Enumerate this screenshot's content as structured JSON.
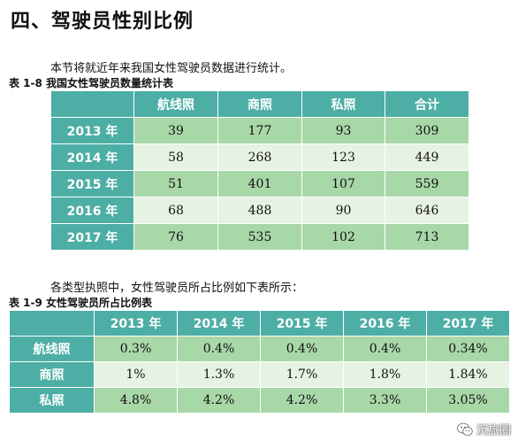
{
  "heading": "四、驾驶员性别比例",
  "intro1": "本节将就近年来我国女性驾驶员数据进行统计。",
  "table1": {
    "caption": "表 1-8  我国女性驾驶员数量统计表",
    "headers": [
      "",
      "航线照",
      "商照",
      "私照",
      "合计"
    ],
    "rows": [
      [
        "2013 年",
        "39",
        "177",
        "93",
        "309"
      ],
      [
        "2014 年",
        "58",
        "268",
        "123",
        "449"
      ],
      [
        "2015 年",
        "51",
        "401",
        "107",
        "559"
      ],
      [
        "2016 年",
        "68",
        "488",
        "90",
        "646"
      ],
      [
        "2017 年",
        "76",
        "535",
        "102",
        "713"
      ]
    ]
  },
  "intro2": "各类型执照中，女性驾驶员所占比例如下表所示：",
  "table2": {
    "caption": "表 1-9  女性驾驶员所占比例表",
    "headers": [
      "",
      "2013 年",
      "2014 年",
      "2015 年",
      "2016 年",
      "2017 年"
    ],
    "rows": [
      [
        "航线照",
        "0.3%",
        "0.4%",
        "0.4%",
        "0.4%",
        "0.34%"
      ],
      [
        "商照",
        "1%",
        "1.3%",
        "1.7%",
        "1.8%",
        "1.84%"
      ],
      [
        "私照",
        "4.8%",
        "4.2%",
        "4.2%",
        "3.3%",
        "3.05%"
      ]
    ]
  },
  "watermark": {
    "text": "沉旅圈",
    "icon": "wechat-icon"
  }
}
